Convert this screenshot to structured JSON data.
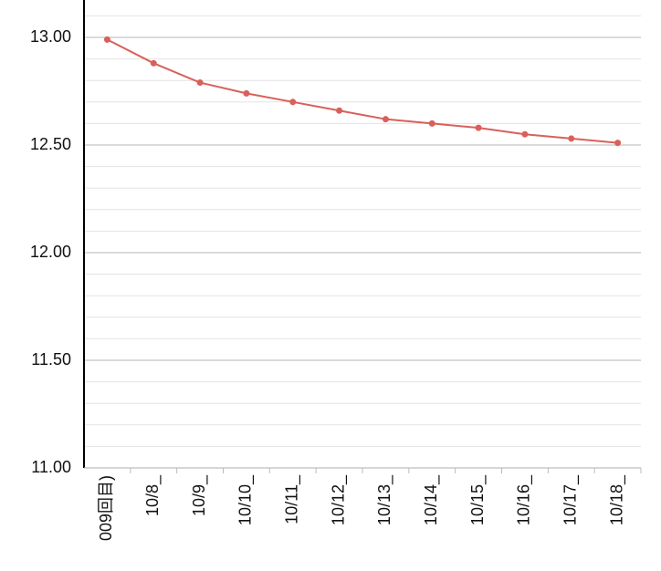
{
  "chart_data": {
    "type": "line",
    "categories": [
      "009回目)",
      "10/8_",
      "10/9_",
      "10/10_",
      "10/11_",
      "10/12_",
      "10/13_",
      "10/14_",
      "10/15_",
      "10/16_",
      "10/17_",
      "10/18_"
    ],
    "series": [
      {
        "color": "#d9605a",
        "values": [
          12.99,
          12.88,
          12.79,
          12.74,
          12.7,
          12.66,
          12.62,
          12.6,
          12.58,
          12.55,
          12.53,
          12.51
        ]
      }
    ],
    "ylim": [
      11,
      13.2
    ],
    "yticks": [
      {
        "value": 11,
        "label": "11.00"
      },
      {
        "value": 11.5,
        "label": "11.50"
      },
      {
        "value": 12,
        "label": "12.00"
      },
      {
        "value": 12.5,
        "label": "12.50"
      },
      {
        "value": 13,
        "label": "13.00"
      }
    ],
    "grid": true,
    "minor_grid_divisions": 5
  }
}
